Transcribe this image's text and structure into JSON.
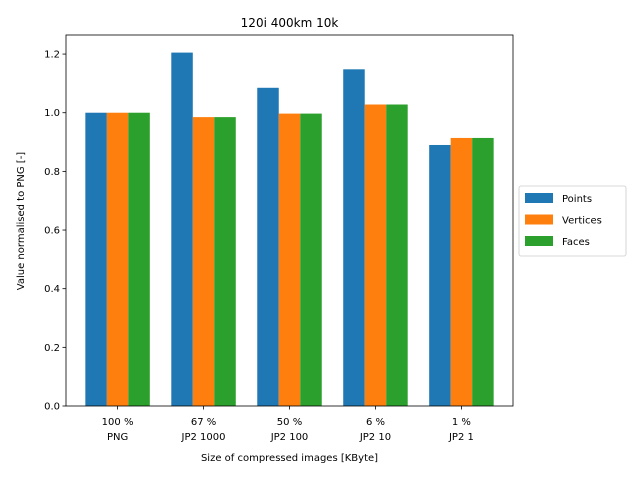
{
  "chart_data": {
    "type": "bar",
    "title": "120i 400km 10k",
    "xlabel": "Size of compressed images [KByte]",
    "ylabel": "Value normalised to PNG [-]",
    "categories": [
      [
        "100 %",
        "PNG"
      ],
      [
        "67 %",
        "JP2 1000"
      ],
      [
        "50 %",
        "JP2 100"
      ],
      [
        "6 %",
        "JP2 10"
      ],
      [
        "1 %",
        "JP2 1"
      ]
    ],
    "series": [
      {
        "name": "Points",
        "color": "#1f77b4",
        "values": [
          1.0,
          1.205,
          1.085,
          1.148,
          0.89
        ]
      },
      {
        "name": "Vertices",
        "color": "#ff7f0e",
        "values": [
          1.0,
          0.985,
          0.997,
          1.028,
          0.914
        ]
      },
      {
        "name": "Faces",
        "color": "#2ca02c",
        "values": [
          1.0,
          0.985,
          0.997,
          1.028,
          0.914
        ]
      }
    ],
    "ylim": [
      0,
      1.265
    ],
    "yticks": [
      "0.0",
      "0.2",
      "0.4",
      "0.6",
      "0.8",
      "1.0",
      "1.2"
    ],
    "ytick_values": [
      0,
      0.2,
      0.4,
      0.6,
      0.8,
      1.0,
      1.2
    ],
    "grid": false,
    "legend_position": "center-right"
  }
}
